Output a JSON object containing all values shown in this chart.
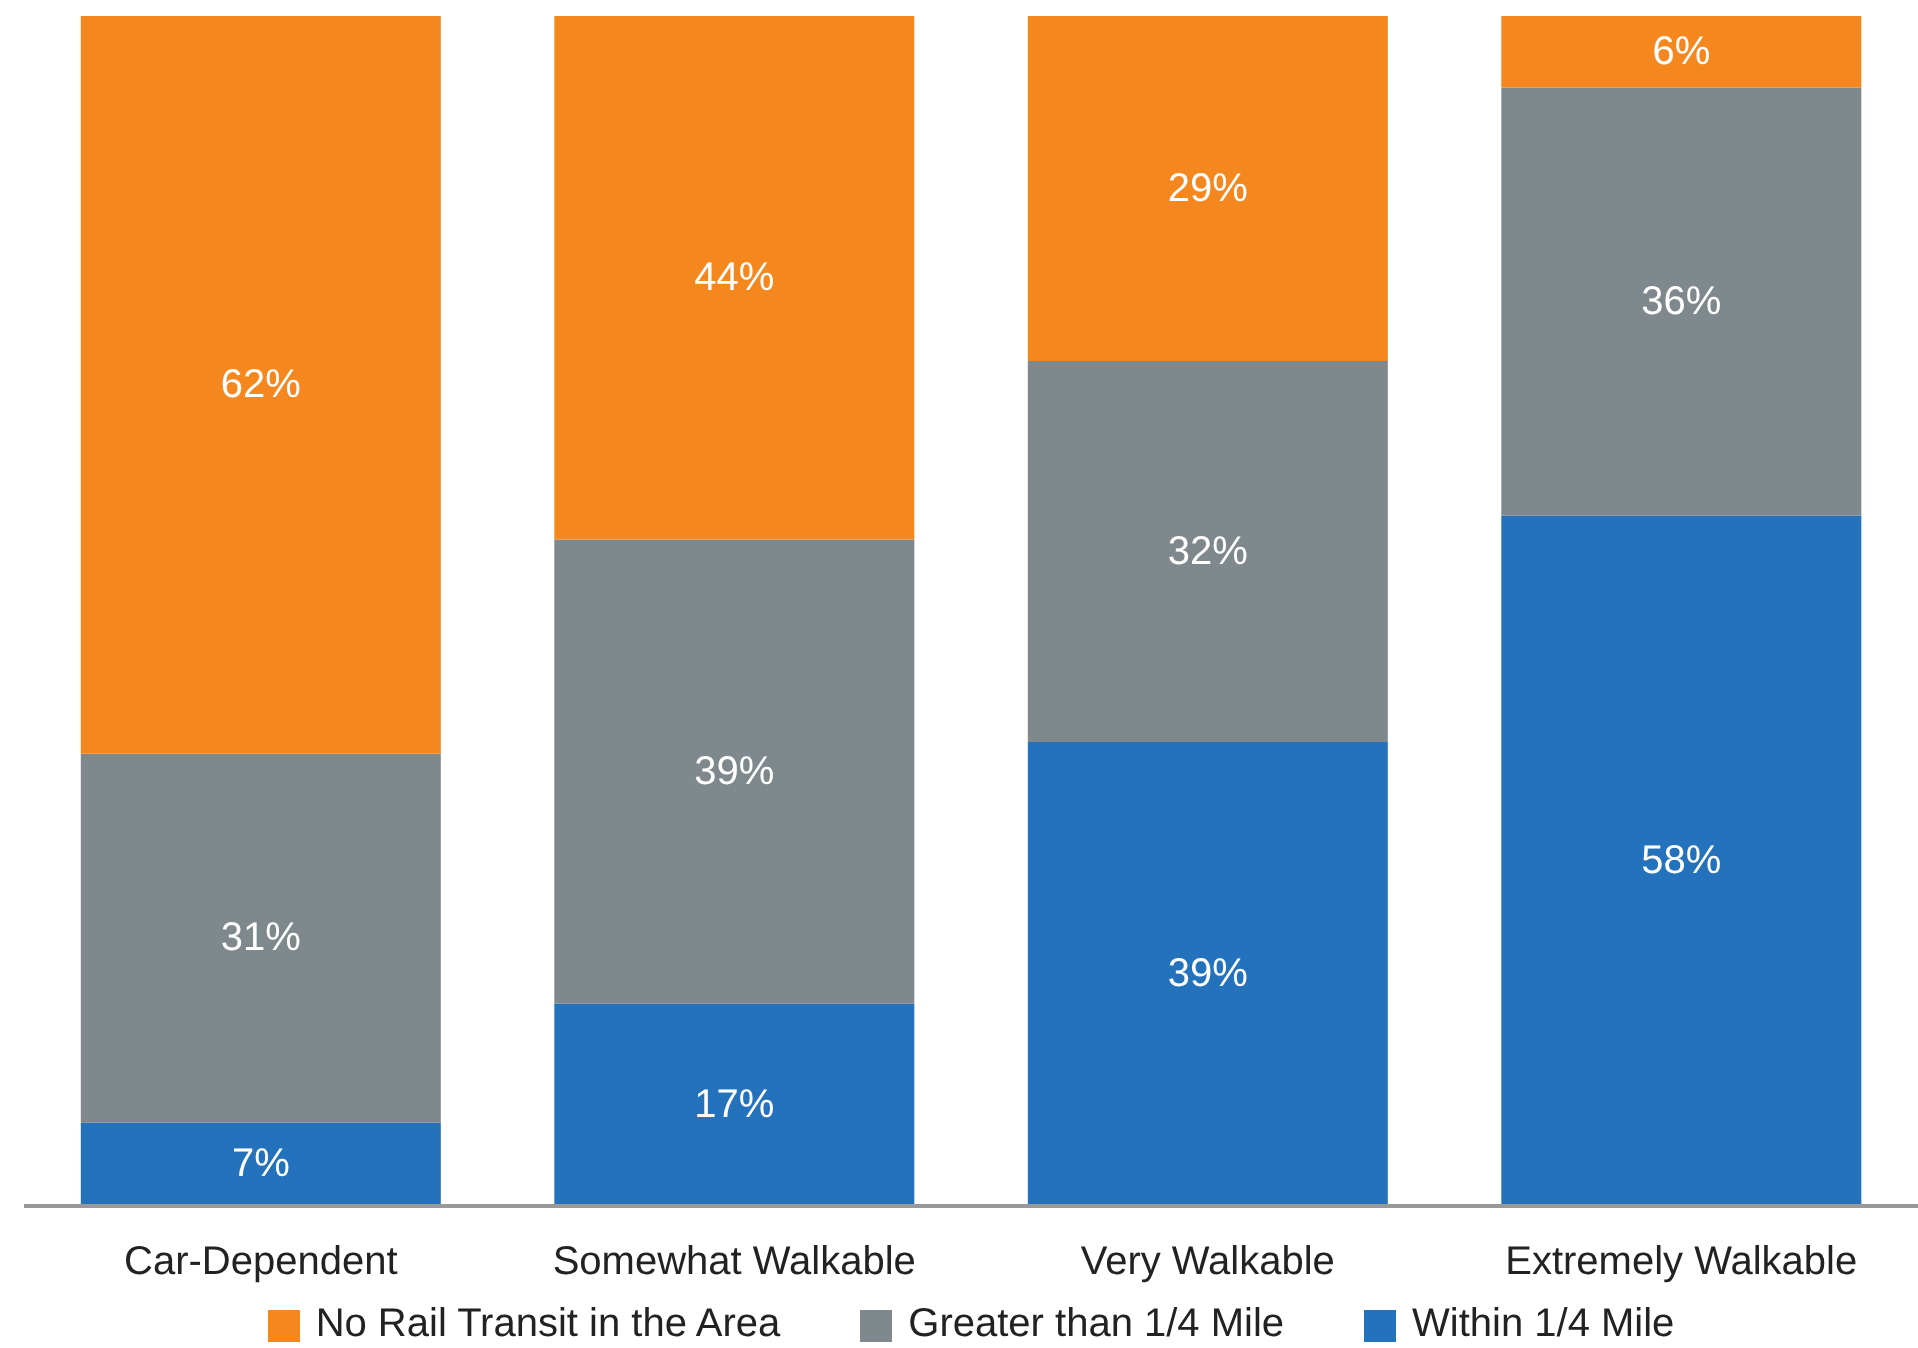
{
  "chart_data": {
    "type": "bar",
    "stacked": true,
    "categories": [
      "Car-Dependent",
      "Somewhat Walkable",
      "Very Walkable",
      "Extremely Walkable"
    ],
    "series": [
      {
        "name": "Within 1/4 Mile",
        "color": "#2372bb",
        "values": [
          7,
          17,
          39,
          58
        ],
        "value_labels": [
          "7%",
          "17%",
          "39%",
          "58%"
        ]
      },
      {
        "name": "Greater than 1/4 Mile",
        "color": "#7f888d",
        "values": [
          31,
          39,
          32,
          36
        ],
        "value_labels": [
          "31%",
          "39%",
          "32%",
          "36%"
        ]
      },
      {
        "name": "No Rail Transit in the Area",
        "color": "#f5871f",
        "values": [
          62,
          44,
          29,
          6
        ],
        "value_labels": [
          "62%",
          "44%",
          "29%",
          "6%"
        ]
      }
    ],
    "legend": "bottom",
    "grid": false
  }
}
